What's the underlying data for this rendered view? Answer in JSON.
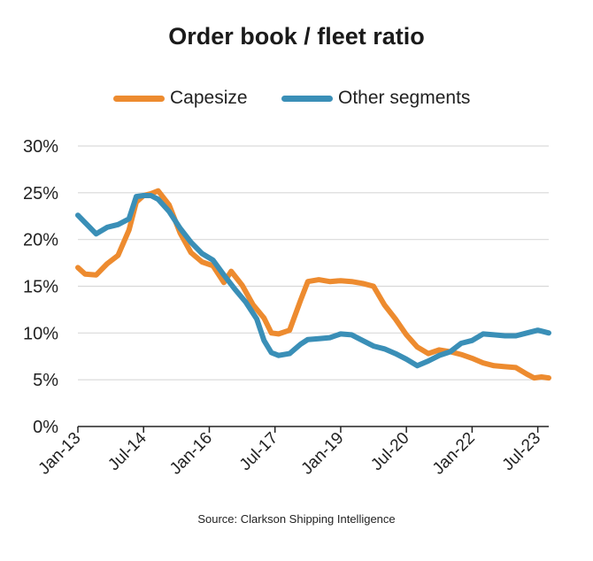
{
  "chart_data": {
    "type": "line",
    "title": "Order book / fleet ratio",
    "source": "Source: Clarkson Shipping Intelligence",
    "xlabel": "",
    "ylabel": "",
    "ylim": [
      0,
      30
    ],
    "y_ticks": [
      "0%",
      "5%",
      "10%",
      "15%",
      "20%",
      "25%",
      "30%"
    ],
    "x_ticks": [
      "Jan-13",
      "Jul-14",
      "Jan-16",
      "Jul-17",
      "Jan-19",
      "Jul-20",
      "Jan-22",
      "Jul-23"
    ],
    "grid": "horizontal",
    "legend_position": "top",
    "series": [
      {
        "name": "Capesize",
        "color": "#ED8B2F",
        "points": [
          [
            "Jan-13",
            17.0
          ],
          [
            "Mar-13",
            16.3
          ],
          [
            "Jun-13",
            16.2
          ],
          [
            "Sep-13",
            17.4
          ],
          [
            "Dec-13",
            18.3
          ],
          [
            "Mar-14",
            21.0
          ],
          [
            "May-14",
            24.0
          ],
          [
            "Jul-14",
            24.7
          ],
          [
            "Sep-14",
            24.9
          ],
          [
            "Nov-14",
            25.2
          ],
          [
            "Feb-15",
            23.7
          ],
          [
            "May-15",
            20.7
          ],
          [
            "Aug-15",
            18.6
          ],
          [
            "Nov-15",
            17.6
          ],
          [
            "Feb-16",
            17.2
          ],
          [
            "May-16",
            15.4
          ],
          [
            "Jul-16",
            16.6
          ],
          [
            "Oct-16",
            15.1
          ],
          [
            "Jan-17",
            13.0
          ],
          [
            "Apr-17",
            11.6
          ],
          [
            "Jun-17",
            10.0
          ],
          [
            "Aug-17",
            9.9
          ],
          [
            "Nov-17",
            10.3
          ],
          [
            "Feb-18",
            13.5
          ],
          [
            "Apr-18",
            15.5
          ],
          [
            "Jul-18",
            15.7
          ],
          [
            "Oct-18",
            15.5
          ],
          [
            "Jan-19",
            15.6
          ],
          [
            "Apr-19",
            15.5
          ],
          [
            "Jul-19",
            15.3
          ],
          [
            "Oct-19",
            15.0
          ],
          [
            "Jan-20",
            13.0
          ],
          [
            "Apr-20",
            11.5
          ],
          [
            "Jul-20",
            9.8
          ],
          [
            "Oct-20",
            8.5
          ],
          [
            "Jan-21",
            7.8
          ],
          [
            "Apr-21",
            8.2
          ],
          [
            "Jul-21",
            8.0
          ],
          [
            "Oct-21",
            7.7
          ],
          [
            "Jan-22",
            7.3
          ],
          [
            "Apr-22",
            6.8
          ],
          [
            "Jul-22",
            6.5
          ],
          [
            "Oct-22",
            6.4
          ],
          [
            "Jan-23",
            6.3
          ],
          [
            "Apr-23",
            5.6
          ],
          [
            "Jun-23",
            5.2
          ],
          [
            "Aug-23",
            5.3
          ],
          [
            "Oct-23",
            5.2
          ]
        ]
      },
      {
        "name": "Other segments",
        "color": "#3A8FB7",
        "points": [
          [
            "Jan-13",
            22.6
          ],
          [
            "Mar-13",
            21.8
          ],
          [
            "Jun-13",
            20.6
          ],
          [
            "Sep-13",
            21.3
          ],
          [
            "Dec-13",
            21.6
          ],
          [
            "Mar-14",
            22.2
          ],
          [
            "May-14",
            24.6
          ],
          [
            "Jul-14",
            24.7
          ],
          [
            "Sep-14",
            24.7
          ],
          [
            "Nov-14",
            24.3
          ],
          [
            "Feb-15",
            23.0
          ],
          [
            "May-15",
            21.2
          ],
          [
            "Aug-15",
            19.7
          ],
          [
            "Nov-15",
            18.5
          ],
          [
            "Feb-16",
            17.8
          ],
          [
            "May-16",
            16.2
          ],
          [
            "Aug-16",
            14.7
          ],
          [
            "Nov-16",
            13.3
          ],
          [
            "Feb-17",
            11.5
          ],
          [
            "Apr-17",
            9.2
          ],
          [
            "Jun-17",
            7.9
          ],
          [
            "Aug-17",
            7.6
          ],
          [
            "Nov-17",
            7.8
          ],
          [
            "Feb-18",
            8.8
          ],
          [
            "Apr-18",
            9.3
          ],
          [
            "Jul-18",
            9.4
          ],
          [
            "Oct-18",
            9.5
          ],
          [
            "Jan-19",
            9.9
          ],
          [
            "Apr-19",
            9.8
          ],
          [
            "Jul-19",
            9.2
          ],
          [
            "Oct-19",
            8.6
          ],
          [
            "Jan-20",
            8.3
          ],
          [
            "Apr-20",
            7.8
          ],
          [
            "Jul-20",
            7.2
          ],
          [
            "Oct-20",
            6.5
          ],
          [
            "Jan-21",
            7.0
          ],
          [
            "Apr-21",
            7.6
          ],
          [
            "Jul-21",
            8.0
          ],
          [
            "Oct-21",
            8.9
          ],
          [
            "Jan-22",
            9.2
          ],
          [
            "Apr-22",
            9.9
          ],
          [
            "Jul-22",
            9.8
          ],
          [
            "Oct-22",
            9.7
          ],
          [
            "Jan-23",
            9.7
          ],
          [
            "Apr-23",
            10.0
          ],
          [
            "Jul-23",
            10.3
          ],
          [
            "Aug-23",
            10.2
          ],
          [
            "Oct-23",
            10.0
          ]
        ]
      }
    ]
  }
}
